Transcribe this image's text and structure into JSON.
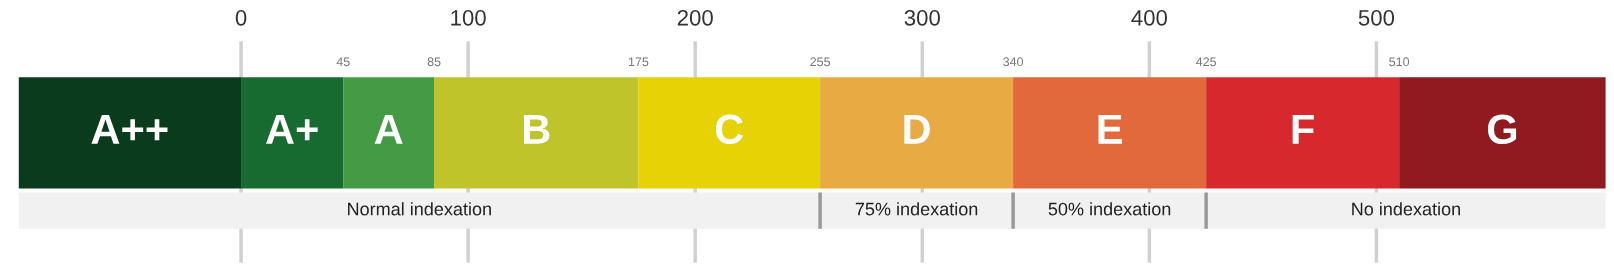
{
  "chart_data": {
    "type": "bar",
    "orientation": "horizontal",
    "categories": [
      null,
      null
    ],
    "xlim": [
      -98,
      601
    ],
    "xticks": [
      0,
      100,
      200,
      300,
      400,
      500
    ],
    "x2lim": [
      -98,
      601
    ],
    "x2ticks": [
      45,
      85,
      175,
      255,
      340,
      425,
      510
    ],
    "grid": "x",
    "legend": false,
    "series": [
      {
        "name": "A++",
        "color": "#0b3b1d",
        "values": [
          98,
          null
        ],
        "base": [
          -98,
          null
        ]
      },
      {
        "name": "A+",
        "color": "#176b31",
        "values": [
          45,
          null
        ],
        "base": [
          0,
          null
        ]
      },
      {
        "name": "A",
        "color": "#449a45",
        "values": [
          40,
          null
        ],
        "base": [
          45,
          null
        ]
      },
      {
        "name": "B",
        "color": "#bfc42a",
        "values": [
          90,
          null
        ],
        "base": [
          85,
          null
        ]
      },
      {
        "name": "C",
        "color": "#e7d305",
        "values": [
          80,
          null
        ],
        "base": [
          175,
          null
        ]
      },
      {
        "name": "D",
        "color": "#e8ab43",
        "values": [
          85,
          null
        ],
        "base": [
          255,
          null
        ]
      },
      {
        "name": "E",
        "color": "#e2693c",
        "values": [
          85,
          null
        ],
        "base": [
          340,
          null
        ]
      },
      {
        "name": "F",
        "color": "#d7292d",
        "values": [
          85,
          null
        ],
        "base": [
          425,
          null
        ]
      },
      {
        "name": "G",
        "color": "#8f1b20",
        "values": [
          91,
          null
        ],
        "base": [
          510,
          null
        ]
      },
      {
        "name": "Normal indexation",
        "color": "#f1f1f1",
        "values": [
          null,
          353
        ],
        "base": [
          null,
          -98
        ]
      },
      {
        "name": "75% indexation",
        "color": "#f1f1f1",
        "values": [
          null,
          85
        ],
        "base": [
          null,
          255
        ]
      },
      {
        "name": "50% indexation",
        "color": "#f1f1f1",
        "values": [
          null,
          85
        ],
        "base": [
          null,
          340
        ]
      },
      {
        "name": "No indexation",
        "color": "#f1f1f1",
        "values": [
          null,
          176
        ],
        "base": [
          null,
          425
        ]
      }
    ]
  }
}
